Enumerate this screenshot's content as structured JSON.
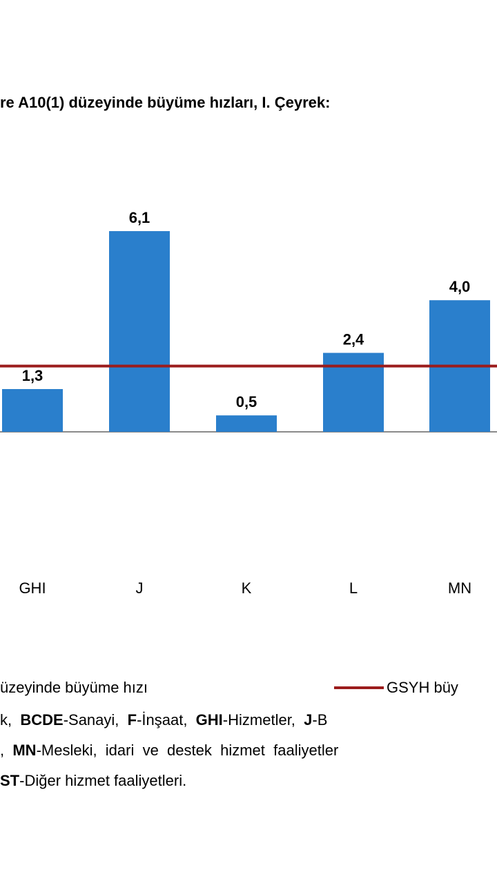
{
  "chart_data": {
    "type": "bar",
    "title": "re A10(1) düzeyinde büyüme hızları, I. Çeyrek:",
    "categories": [
      "GHI",
      "J",
      "K",
      "L",
      "MN"
    ],
    "values": [
      1.3,
      6.1,
      0.5,
      2.4,
      4.0
    ],
    "value_labels": [
      "1,3",
      "6,1",
      "0,5",
      "2,4",
      "4,0"
    ],
    "reference_line": {
      "name": "GSYH büy",
      "value": 2.0,
      "color": "#9b1c1c"
    },
    "series": [
      {
        "name": "üzeyinde büyüme hızı",
        "color": "#2a7fcc"
      }
    ],
    "ylim": [
      0,
      7
    ],
    "grid": false,
    "legend_position": "bottom"
  },
  "legend": {
    "bar_label": "üzeyinde büyüme hızı",
    "line_label": "GSYH büy"
  },
  "notes": {
    "line1": [
      {
        "text": "k,  ",
        "bold": false
      },
      {
        "text": "BCDE",
        "bold": true
      },
      {
        "text": "-Sanayi,  ",
        "bold": false
      },
      {
        "text": "F",
        "bold": true
      },
      {
        "text": "-İnşaat,  ",
        "bold": false
      },
      {
        "text": "GHI",
        "bold": true
      },
      {
        "text": "-Hizmetler,  ",
        "bold": false
      },
      {
        "text": "J",
        "bold": true
      },
      {
        "text": "-B",
        "bold": false
      }
    ],
    "line2": [
      {
        "text": ",  ",
        "bold": false
      },
      {
        "text": "MN",
        "bold": true
      },
      {
        "text": "-Mesleki,  idari  ve  destek  hizmet  faaliyetler",
        "bold": false
      }
    ],
    "line3": [
      {
        "text": "ST",
        "bold": true
      },
      {
        "text": "-Diğer hizmet faaliyetleri.",
        "bold": false
      }
    ]
  }
}
